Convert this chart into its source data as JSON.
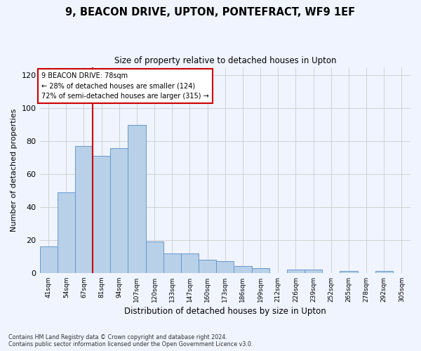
{
  "title": "9, BEACON DRIVE, UPTON, PONTEFRACT, WF9 1EF",
  "subtitle": "Size of property relative to detached houses in Upton",
  "xlabel": "Distribution of detached houses by size in Upton",
  "ylabel": "Number of detached properties",
  "categories": [
    "41sqm",
    "54sqm",
    "67sqm",
    "81sqm",
    "94sqm",
    "107sqm",
    "120sqm",
    "133sqm",
    "147sqm",
    "160sqm",
    "173sqm",
    "186sqm",
    "199sqm",
    "212sqm",
    "226sqm",
    "239sqm",
    "252sqm",
    "265sqm",
    "278sqm",
    "292sqm",
    "305sqm"
  ],
  "values": [
    16,
    49,
    77,
    71,
    76,
    90,
    19,
    12,
    12,
    8,
    7,
    4,
    3,
    0,
    2,
    2,
    0,
    1,
    0,
    1,
    0
  ],
  "bar_color": "#b8d0e8",
  "bar_edge_color": "#6699cc",
  "bar_edge_width": 0.7,
  "redline_index": 2.5,
  "ylim": [
    0,
    125
  ],
  "yticks": [
    0,
    20,
    40,
    60,
    80,
    100,
    120
  ],
  "annotation_line1": "9 BEACON DRIVE: 78sqm",
  "annotation_line2": "← 28% of detached houses are smaller (124)",
  "annotation_line3": "72% of semi-detached houses are larger (315) →",
  "annotation_box_color": "#ffffff",
  "annotation_box_edge": "#cc0000",
  "footnote1": "Contains HM Land Registry data © Crown copyright and database right 2024.",
  "footnote2": "Contains public sector information licensed under the Open Government Licence v3.0.",
  "bg_color": "#f0f4ff",
  "grid_color": "#d0d0d0"
}
